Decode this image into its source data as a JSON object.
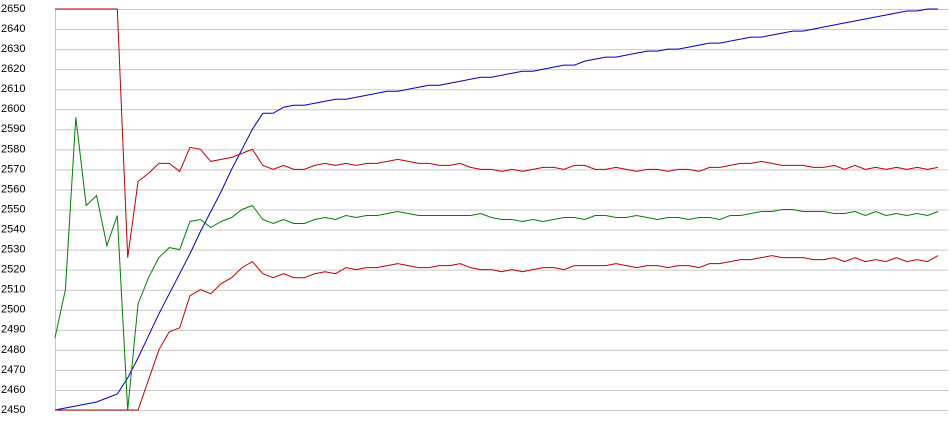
{
  "chart_data": {
    "type": "line",
    "categories": [
      null,
      null,
      null,
      null,
      null,
      null,
      null,
      null,
      null,
      null,
      null,
      null,
      null,
      null,
      null,
      null,
      null,
      null,
      null,
      null,
      null,
      null,
      null,
      null,
      null,
      null,
      null,
      null,
      null,
      null,
      null,
      null,
      null,
      null,
      null,
      null,
      null,
      null,
      null,
      null,
      null,
      null,
      null,
      null,
      null,
      null,
      null,
      null,
      null,
      null,
      null,
      null,
      null,
      null,
      null,
      null,
      null,
      null,
      null,
      null,
      null,
      null,
      null,
      null,
      null,
      null,
      null,
      null,
      null,
      null,
      null,
      null,
      null,
      null,
      null,
      null,
      null,
      null,
      null,
      null,
      null,
      null,
      null,
      null,
      null,
      null
    ],
    "series": [
      {
        "color": "#0000c0",
        "values": [
          2450,
          2451,
          2452,
          2453,
          2454,
          2456,
          2458,
          2466,
          2476,
          2487,
          2498,
          2508,
          2518,
          2528,
          2539,
          2549,
          2559,
          2570,
          2580,
          2590,
          2598,
          2598,
          2601,
          2602,
          2602,
          2603,
          2604,
          2605,
          2605,
          2606,
          2607,
          2608,
          2609,
          2609,
          2610,
          2611,
          2612,
          2612,
          2613,
          2614,
          2615,
          2616,
          2616,
          2617,
          2618,
          2619,
          2619,
          2620,
          2621,
          2622,
          2622,
          2624,
          2625,
          2626,
          2626,
          2627,
          2628,
          2629,
          2629,
          2630,
          2630,
          2631,
          2632,
          2633,
          2633,
          2634,
          2635,
          2636,
          2636,
          2637,
          2638,
          2639,
          2639,
          2640,
          2641,
          2642,
          2643,
          2644,
          2645,
          2646,
          2647,
          2648,
          2649,
          2649,
          2650,
          2650
        ]
      },
      {
        "color": "#c00000",
        "values": [
          2650,
          2650,
          2650,
          2650,
          2650,
          2650,
          2650,
          2526,
          2564,
          2568,
          2573,
          2573,
          2569,
          2581,
          2580,
          2574,
          2575,
          2576,
          2578,
          2580,
          2572,
          2570,
          2572,
          2570,
          2570,
          2572,
          2573,
          2572,
          2573,
          2572,
          2573,
          2573,
          2574,
          2575,
          2574,
          2573,
          2573,
          2572,
          2572,
          2573,
          2571,
          2570,
          2570,
          2569,
          2570,
          2569,
          2570,
          2571,
          2571,
          2570,
          2572,
          2572,
          2570,
          2570,
          2571,
          2570,
          2569,
          2570,
          2570,
          2569,
          2570,
          2570,
          2569,
          2571,
          2571,
          2572,
          2573,
          2573,
          2574,
          2573,
          2572,
          2572,
          2572,
          2571,
          2571,
          2572,
          2570,
          2572,
          2570,
          2571,
          2570,
          2571,
          2570,
          2571,
          2570,
          2571
        ]
      },
      {
        "color": "#008000",
        "values": [
          2486,
          2510,
          2596,
          2552,
          2557,
          2532,
          2547,
          2450,
          2503,
          2516,
          2526,
          2531,
          2530,
          2544,
          2545,
          2541,
          2544,
          2546,
          2550,
          2552,
          2545,
          2543,
          2545,
          2543,
          2543,
          2545,
          2546,
          2545,
          2547,
          2546,
          2547,
          2547,
          2548,
          2549,
          2548,
          2547,
          2547,
          2547,
          2547,
          2547,
          2547,
          2548,
          2546,
          2545,
          2545,
          2544,
          2545,
          2544,
          2545,
          2546,
          2546,
          2545,
          2547,
          2547,
          2546,
          2546,
          2547,
          2546,
          2545,
          2546,
          2546,
          2545,
          2546,
          2546,
          2545,
          2547,
          2547,
          2548,
          2549,
          2549,
          2550,
          2550,
          2549,
          2549,
          2549,
          2548,
          2548,
          2549,
          2547,
          2549,
          2547,
          2548,
          2547,
          2548,
          2547,
          2549
        ]
      },
      {
        "color": "#c00000",
        "values": [
          2450,
          2450,
          2450,
          2450,
          2450,
          2450,
          2450,
          2450,
          2450,
          2465,
          2480,
          2489,
          2491,
          2507,
          2510,
          2508,
          2513,
          2516,
          2521,
          2524,
          2518,
          2516,
          2518,
          2516,
          2516,
          2518,
          2519,
          2518,
          2521,
          2520,
          2521,
          2521,
          2522,
          2523,
          2522,
          2521,
          2521,
          2522,
          2522,
          2523,
          2521,
          2520,
          2520,
          2519,
          2520,
          2519,
          2520,
          2521,
          2521,
          2520,
          2522,
          2522,
          2522,
          2522,
          2523,
          2522,
          2521,
          2522,
          2522,
          2521,
          2522,
          2522,
          2521,
          2523,
          2523,
          2524,
          2525,
          2525,
          2526,
          2527,
          2526,
          2526,
          2526,
          2525,
          2525,
          2526,
          2524,
          2526,
          2524,
          2525,
          2524,
          2526,
          2524,
          2525,
          2524,
          2527
        ]
      }
    ],
    "ylim": [
      2450,
      2650
    ],
    "yticks": [
      2450,
      2460,
      2470,
      2480,
      2490,
      2500,
      2510,
      2520,
      2530,
      2540,
      2550,
      2560,
      2570,
      2580,
      2590,
      2600,
      2610,
      2620,
      2630,
      2640,
      2650
    ],
    "grid": true
  }
}
